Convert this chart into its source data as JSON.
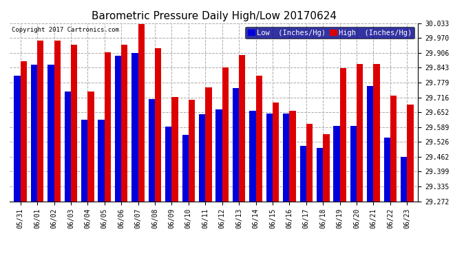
{
  "title": "Barometric Pressure Daily High/Low 20170624",
  "copyright": "Copyright 2017 Cartronics.com",
  "background_color": "#ffffff",
  "plot_bg_color": "#ffffff",
  "grid_color": "#aaaaaa",
  "bar_color_low": "#0000dd",
  "bar_color_high": "#dd0000",
  "legend_low": "Low  (Inches/Hg)",
  "legend_high": "High  (Inches/Hg)",
  "dates": [
    "05/31",
    "06/01",
    "06/02",
    "06/03",
    "06/04",
    "06/05",
    "06/06",
    "06/07",
    "06/08",
    "06/09",
    "06/10",
    "06/11",
    "06/12",
    "06/13",
    "06/14",
    "06/15",
    "06/16",
    "06/17",
    "06/18",
    "06/19",
    "06/20",
    "06/21",
    "06/22",
    "06/23"
  ],
  "low_values": [
    29.81,
    29.855,
    29.855,
    29.74,
    29.62,
    29.62,
    29.895,
    29.905,
    29.71,
    29.59,
    29.555,
    29.645,
    29.665,
    29.755,
    29.658,
    29.648,
    29.648,
    29.51,
    29.5,
    29.595,
    29.595,
    29.765,
    29.545,
    29.462
  ],
  "high_values": [
    29.87,
    29.96,
    29.96,
    29.94,
    29.74,
    29.908,
    29.94,
    30.028,
    29.925,
    29.718,
    29.706,
    29.76,
    29.843,
    29.898,
    29.808,
    29.695,
    29.66,
    29.602,
    29.558,
    29.84,
    29.858,
    29.858,
    29.722,
    29.685
  ],
  "ylim_min": 29.272,
  "ylim_max": 30.033,
  "yticks": [
    29.272,
    29.335,
    29.399,
    29.462,
    29.526,
    29.589,
    29.652,
    29.716,
    29.779,
    29.843,
    29.906,
    29.97,
    30.033
  ],
  "title_fontsize": 11,
  "tick_fontsize": 7,
  "legend_fontsize": 7.5,
  "bar_width": 0.38
}
